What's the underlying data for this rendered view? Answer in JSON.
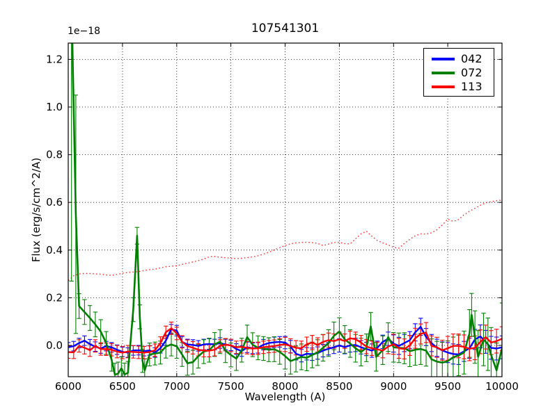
{
  "plot": {
    "title": "107541301",
    "offset_text": "1e−18",
    "xlabel": "Wavelength (A)",
    "ylabel": "Flux (erg/s/cm^2/A)"
  },
  "legend": {
    "items": [
      {
        "label": "042",
        "color": "#0000ff"
      },
      {
        "label": "072",
        "color": "#008000"
      },
      {
        "label": "113",
        "color": "#ff0000"
      }
    ]
  },
  "chart_data": {
    "type": "line",
    "title": "107541301",
    "xlabel": "Wavelength (A)",
    "ylabel": "Flux (erg/s/cm^2/A)",
    "y_offset_factor": "1e-18",
    "xlim": [
      6000,
      10000
    ],
    "ylim": [
      -0.1312,
      1.2682
    ],
    "xticks": [
      6000,
      6500,
      7000,
      7500,
      8000,
      8500,
      9000,
      9500,
      10000
    ],
    "yticks": [
      0.0,
      0.2,
      0.4,
      0.6,
      0.8,
      1.0,
      1.2
    ],
    "grid": true,
    "grid_style": "dotted",
    "legend_position": "upper right",
    "series": [
      {
        "name": "042",
        "color": "#0000ff",
        "style": "solid",
        "lw": 2.4,
        "in_legend": true,
        "x": [
          6000,
          6050,
          6100,
          6150,
          6200,
          6250,
          6300,
          6350,
          6400,
          6450,
          6500,
          6550,
          6600,
          6650,
          6700,
          6750,
          6800,
          6850,
          6900,
          6950,
          7000,
          7050,
          7100,
          7150,
          7200,
          7250,
          7300,
          7350,
          7400,
          7450,
          7500,
          7550,
          7600,
          7650,
          7700,
          7750,
          7800,
          7850,
          7900,
          7950,
          8000,
          8050,
          8100,
          8150,
          8200,
          8250,
          8300,
          8350,
          8400,
          8450,
          8500,
          8550,
          8600,
          8650,
          8700,
          8750,
          8800,
          8850,
          8900,
          8950,
          9000,
          9050,
          9100,
          9150,
          9200,
          9250,
          9300,
          9350,
          9400,
          9450,
          9500,
          9550,
          9600,
          9650,
          9700,
          9750,
          9800,
          9850,
          9900,
          9950,
          10000
        ],
        "y": [
          -0.008,
          -0.003,
          0.01,
          0.02,
          0.005,
          -0.005,
          -0.013,
          -0.003,
          -0.008,
          -0.018,
          -0.027,
          -0.03,
          -0.021,
          -0.02,
          -0.024,
          -0.021,
          -0.03,
          -0.012,
          0.02,
          0.068,
          0.062,
          0.015,
          0.004,
          0.002,
          -0.002,
          0.004,
          0.006,
          0.004,
          0.01,
          0.004,
          0.0,
          -0.015,
          -0.024,
          -0.008,
          -0.012,
          -0.01,
          0.003,
          0.01,
          0.013,
          0.015,
          0.012,
          -0.005,
          -0.035,
          -0.043,
          -0.035,
          -0.037,
          -0.032,
          -0.022,
          -0.014,
          -0.008,
          0.0,
          -0.007,
          0.0,
          0.002,
          -0.008,
          -0.015,
          -0.022,
          -0.01,
          0.015,
          0.028,
          0.008,
          -0.002,
          0.01,
          0.022,
          0.055,
          0.078,
          0.035,
          0.01,
          -0.01,
          -0.021,
          -0.03,
          -0.036,
          -0.038,
          -0.025,
          -0.012,
          0.025,
          0.038,
          0.015,
          -0.01,
          -0.013,
          -0.008
        ],
        "yerr": [
          0.02,
          0.02,
          0.02,
          0.02,
          0.02,
          0.02,
          0.02,
          0.02,
          0.02,
          0.02,
          0.02,
          0.02,
          0.02,
          0.02,
          0.02,
          0.02,
          0.02,
          0.02,
          0.02,
          0.02,
          0.022,
          0.022,
          0.022,
          0.022,
          0.022,
          0.022,
          0.022,
          0.022,
          0.022,
          0.022,
          0.022,
          0.022,
          0.022,
          0.022,
          0.022,
          0.022,
          0.022,
          0.022,
          0.022,
          0.022,
          0.026,
          0.026,
          0.026,
          0.026,
          0.026,
          0.026,
          0.026,
          0.026,
          0.026,
          0.026,
          0.028,
          0.028,
          0.028,
          0.028,
          0.028,
          0.028,
          0.028,
          0.028,
          0.028,
          0.028,
          0.036,
          0.036,
          0.036,
          0.036,
          0.036,
          0.036,
          0.036,
          0.036,
          0.036,
          0.036,
          0.042,
          0.042,
          0.042,
          0.042,
          0.042,
          0.042,
          0.048,
          0.048,
          0.048,
          0.048,
          0.048
        ]
      },
      {
        "name": "072",
        "color": "#008000",
        "style": "solid",
        "lw": 2.6,
        "in_legend": true,
        "x": [
          6030,
          6070,
          6100,
          6150,
          6200,
          6250,
          6300,
          6350,
          6400,
          6430,
          6460,
          6490,
          6520,
          6550,
          6600,
          6635,
          6660,
          6685,
          6705,
          6750,
          6800,
          6850,
          6900,
          6950,
          7000,
          7050,
          7100,
          7150,
          7200,
          7250,
          7300,
          7350,
          7400,
          7450,
          7500,
          7550,
          7600,
          7650,
          7700,
          7750,
          7800,
          7850,
          7900,
          7950,
          8000,
          8050,
          8100,
          8150,
          8200,
          8250,
          8300,
          8350,
          8400,
          8450,
          8500,
          8550,
          8600,
          8650,
          8700,
          8750,
          8790,
          8840,
          8900,
          8950,
          9000,
          9050,
          9100,
          9150,
          9200,
          9250,
          9300,
          9350,
          9400,
          9450,
          9500,
          9550,
          9600,
          9650,
          9700,
          9720,
          9750,
          9780,
          9830,
          9870,
          9900,
          9950,
          10000
        ],
        "y": [
          1.45,
          0.55,
          0.165,
          0.14,
          0.115,
          0.088,
          0.058,
          0.01,
          -0.06,
          -0.123,
          -0.118,
          -0.096,
          -0.122,
          -0.115,
          0.15,
          0.46,
          0.12,
          -0.065,
          -0.105,
          -0.038,
          -0.034,
          -0.03,
          -0.005,
          0.004,
          -0.004,
          -0.038,
          -0.075,
          -0.07,
          -0.045,
          -0.026,
          -0.02,
          0.004,
          0.016,
          -0.022,
          -0.04,
          -0.055,
          -0.02,
          0.035,
          0.003,
          -0.01,
          -0.013,
          -0.018,
          -0.016,
          -0.027,
          -0.045,
          -0.066,
          -0.057,
          -0.048,
          -0.052,
          -0.04,
          -0.03,
          -0.01,
          0.01,
          0.04,
          0.058,
          0.025,
          0.008,
          -0.012,
          -0.028,
          -0.01,
          0.08,
          -0.048,
          -0.02,
          0.035,
          -0.008,
          -0.01,
          -0.012,
          -0.024,
          -0.018,
          -0.015,
          -0.022,
          -0.058,
          -0.068,
          -0.072,
          -0.066,
          -0.05,
          -0.042,
          -0.03,
          0.05,
          0.128,
          0.035,
          -0.048,
          0.025,
          0.005,
          -0.04,
          -0.105,
          -0.012
        ],
        "yerr": [
          1.18,
          0.5,
          0.052,
          0.052,
          0.052,
          0.052,
          0.05,
          0.048,
          0.048,
          0.048,
          0.048,
          0.048,
          0.048,
          0.048,
          0.05,
          0.035,
          0.05,
          0.048,
          0.048,
          0.048,
          0.048,
          0.048,
          0.048,
          0.048,
          0.05,
          0.05,
          0.05,
          0.05,
          0.05,
          0.05,
          0.05,
          0.05,
          0.05,
          0.05,
          0.05,
          0.05,
          0.05,
          0.05,
          0.05,
          0.05,
          0.05,
          0.05,
          0.052,
          0.052,
          0.054,
          0.054,
          0.054,
          0.054,
          0.054,
          0.054,
          0.054,
          0.056,
          0.056,
          0.058,
          0.058,
          0.058,
          0.058,
          0.058,
          0.058,
          0.058,
          0.058,
          0.06,
          0.06,
          0.06,
          0.062,
          0.062,
          0.065,
          0.065,
          0.065,
          0.065,
          0.065,
          0.085,
          0.085,
          0.085,
          0.085,
          0.085,
          0.085,
          0.09,
          0.1,
          0.09,
          0.11,
          0.11,
          0.11,
          0.11,
          0.115,
          0.115,
          0.19
        ]
      },
      {
        "name": "113",
        "color": "#ff0000",
        "style": "solid",
        "lw": 2.4,
        "in_legend": true,
        "x": [
          6000,
          6050,
          6100,
          6150,
          6200,
          6250,
          6300,
          6350,
          6400,
          6450,
          6500,
          6550,
          6600,
          6650,
          6700,
          6750,
          6800,
          6850,
          6900,
          6950,
          7000,
          7050,
          7100,
          7150,
          7200,
          7250,
          7300,
          7350,
          7400,
          7450,
          7500,
          7550,
          7600,
          7650,
          7700,
          7750,
          7800,
          7850,
          7900,
          7950,
          8000,
          8050,
          8100,
          8150,
          8200,
          8250,
          8300,
          8350,
          8400,
          8450,
          8500,
          8550,
          8600,
          8650,
          8700,
          8750,
          8800,
          8850,
          8900,
          8950,
          9000,
          9050,
          9100,
          9150,
          9200,
          9250,
          9300,
          9350,
          9400,
          9450,
          9500,
          9550,
          9600,
          9650,
          9700,
          9750,
          9800,
          9850,
          9900,
          9950,
          10000
        ],
        "y": [
          -0.028,
          -0.029,
          -0.002,
          -0.01,
          -0.02,
          -0.002,
          -0.015,
          -0.016,
          -0.018,
          -0.026,
          -0.03,
          -0.026,
          -0.027,
          -0.029,
          -0.03,
          -0.028,
          -0.02,
          0.01,
          0.055,
          0.072,
          0.05,
          0.015,
          -0.003,
          -0.01,
          -0.018,
          -0.022,
          -0.022,
          -0.018,
          -0.002,
          0.003,
          0.0,
          -0.008,
          -0.006,
          -0.01,
          -0.013,
          -0.012,
          -0.008,
          -0.005,
          -0.003,
          0.002,
          0.004,
          -0.002,
          -0.01,
          -0.012,
          0.005,
          0.012,
          0.002,
          0.015,
          0.022,
          0.018,
          0.026,
          0.018,
          0.03,
          0.026,
          0.012,
          -0.005,
          -0.012,
          -0.016,
          -0.022,
          -0.005,
          0.005,
          -0.012,
          -0.015,
          0.0,
          0.03,
          0.048,
          0.054,
          -0.002,
          -0.008,
          -0.02,
          -0.012,
          -0.002,
          -0.002,
          -0.006,
          -0.014,
          -0.01,
          0.015,
          0.035,
          0.012,
          0.018,
          0.028
        ],
        "yerr": [
          0.026,
          0.026,
          0.026,
          0.026,
          0.026,
          0.026,
          0.026,
          0.026,
          0.026,
          0.026,
          0.026,
          0.026,
          0.026,
          0.026,
          0.026,
          0.026,
          0.026,
          0.026,
          0.026,
          0.026,
          0.026,
          0.026,
          0.026,
          0.026,
          0.026,
          0.026,
          0.026,
          0.026,
          0.026,
          0.026,
          0.026,
          0.026,
          0.026,
          0.026,
          0.026,
          0.026,
          0.026,
          0.026,
          0.026,
          0.026,
          0.03,
          0.03,
          0.03,
          0.03,
          0.03,
          0.03,
          0.03,
          0.03,
          0.03,
          0.03,
          0.03,
          0.03,
          0.03,
          0.03,
          0.03,
          0.03,
          0.03,
          0.03,
          0.03,
          0.03,
          0.042,
          0.042,
          0.042,
          0.042,
          0.042,
          0.042,
          0.042,
          0.042,
          0.042,
          0.042,
          0.05,
          0.05,
          0.05,
          0.05,
          0.05,
          0.05,
          0.05,
          0.05,
          0.05,
          0.05,
          0.05
        ]
      },
      {
        "name": "error-spectrum",
        "color": "#ff2a2a",
        "style": "dotted",
        "lw": 1.4,
        "in_legend": false,
        "x": [
          6000,
          6050,
          6100,
          6150,
          6200,
          6250,
          6300,
          6350,
          6400,
          6450,
          6500,
          6550,
          6600,
          6650,
          6700,
          6750,
          6800,
          6850,
          6900,
          6950,
          7000,
          7050,
          7100,
          7150,
          7200,
          7250,
          7300,
          7350,
          7400,
          7450,
          7500,
          7550,
          7600,
          7650,
          7700,
          7750,
          7800,
          7850,
          7900,
          7950,
          8000,
          8050,
          8100,
          8150,
          8200,
          8250,
          8300,
          8350,
          8400,
          8450,
          8500,
          8550,
          8600,
          8650,
          8700,
          8750,
          8800,
          8850,
          8900,
          8950,
          9000,
          9050,
          9100,
          9150,
          9200,
          9250,
          9300,
          9350,
          9400,
          9450,
          9500,
          9550,
          9600,
          9650,
          9700,
          9750,
          9800,
          9850,
          9900,
          9950,
          10000
        ],
        "y": [
          0.272,
          0.292,
          0.3,
          0.302,
          0.302,
          0.3,
          0.299,
          0.296,
          0.294,
          0.298,
          0.303,
          0.306,
          0.308,
          0.31,
          0.314,
          0.318,
          0.32,
          0.325,
          0.33,
          0.332,
          0.334,
          0.34,
          0.345,
          0.35,
          0.356,
          0.362,
          0.372,
          0.373,
          0.37,
          0.368,
          0.366,
          0.364,
          0.366,
          0.368,
          0.371,
          0.376,
          0.383,
          0.391,
          0.401,
          0.41,
          0.419,
          0.426,
          0.43,
          0.432,
          0.433,
          0.431,
          0.428,
          0.419,
          0.425,
          0.432,
          0.432,
          0.427,
          0.426,
          0.447,
          0.468,
          0.479,
          0.458,
          0.44,
          0.43,
          0.422,
          0.411,
          0.408,
          0.428,
          0.445,
          0.46,
          0.468,
          0.467,
          0.472,
          0.485,
          0.505,
          0.53,
          0.52,
          0.528,
          0.548,
          0.563,
          0.575,
          0.588,
          0.598,
          0.603,
          0.607,
          0.61
        ]
      }
    ]
  }
}
